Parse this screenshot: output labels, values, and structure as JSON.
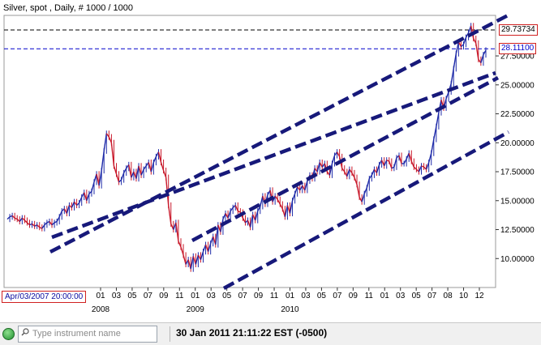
{
  "window": {
    "title": "Silver, spot , Daily, # 1000 / 1000"
  },
  "price_markers": {
    "upper": {
      "value": "29.73734",
      "color": "#000000"
    },
    "lower": {
      "value": "28.11100",
      "color": "#0000cc"
    }
  },
  "cursor_date": "Apr/03/2007 20:00:00",
  "statusbar": {
    "search_placeholder": "Type instrument name",
    "clock": "30 Jan 2011 21:11:22  EST (-0500)"
  },
  "chart_data": {
    "type": "line",
    "title": "Silver, spot , Daily, # 1000 / 1000",
    "y_ticks": [
      "27.50000",
      "25.00000",
      "22.50000",
      "20.00000",
      "17.50000",
      "15.00000",
      "12.50000",
      "10.00000"
    ],
    "ylim": [
      7.5,
      31.0
    ],
    "x_month_ticks": [
      "01",
      "03",
      "05",
      "07",
      "09",
      "11",
      "01",
      "03",
      "05",
      "07",
      "09",
      "11",
      "01",
      "03",
      "05",
      "07",
      "09",
      "11",
      "01",
      "03",
      "05",
      "07",
      "08",
      "10",
      "12"
    ],
    "x_year_labels": [
      "2008",
      "2009",
      "2010"
    ],
    "series": [
      {
        "values": [
          13.4,
          13.6,
          13.7,
          13.5,
          13.4,
          13.2,
          13.5,
          13.3,
          13.1,
          12.9,
          13.0,
          12.8,
          12.9,
          12.7,
          12.6,
          12.9,
          13.1,
          13.2,
          12.9,
          13.1,
          13.2,
          13.6,
          14.1,
          14.3,
          13.9,
          14.6,
          14.4,
          14.9,
          14.6,
          14.8,
          15.3,
          15.7,
          15.0,
          15.6,
          15.8,
          16.6,
          17.3,
          16.3,
          17.6,
          19.3,
          20.8,
          20.5,
          20.0,
          18.0,
          17.3,
          16.6,
          16.8,
          17.4,
          17.8,
          18.1,
          17.0,
          17.5,
          16.9,
          18.0,
          17.2,
          17.7,
          18.0,
          18.3,
          17.5,
          18.3,
          18.8,
          19.2,
          18.3,
          17.6,
          17.0,
          14.6,
          13.0,
          12.5,
          13.1,
          11.5,
          11.0,
          10.3,
          9.5,
          9.9,
          9.1,
          10.2,
          9.5,
          10.3,
          9.9,
          10.6,
          11.2,
          10.6,
          11.3,
          11.9,
          11.2,
          12.9,
          12.3,
          13.4,
          13.9,
          13.5,
          14.1,
          14.4,
          14.6,
          14.1,
          14.0,
          13.5,
          13.1,
          13.3,
          12.7,
          13.8,
          13.3,
          14.1,
          14.5,
          15.4,
          14.7,
          15.5,
          15.9,
          14.9,
          15.4,
          15.1,
          14.7,
          14.3,
          13.6,
          14.6,
          13.9,
          15.0,
          15.6,
          16.2,
          15.9,
          16.3,
          15.9,
          16.7,
          17.2,
          16.9,
          17.8,
          17.5,
          18.3,
          17.9,
          18.2,
          17.5,
          17.2,
          18.2,
          18.9,
          19.2,
          18.8,
          17.8,
          17.5,
          17.1,
          17.7,
          17.4,
          17.0,
          16.4,
          15.3,
          14.9,
          15.6,
          16.1,
          16.9,
          17.2,
          17.7,
          17.4,
          18.1,
          18.5,
          18.0,
          18.5,
          18.4,
          17.8,
          17.9,
          18.7,
          18.9,
          18.2,
          18.2,
          18.6,
          19.1,
          18.4,
          17.9,
          17.7,
          17.5,
          18.0,
          17.9,
          17.7,
          18.3,
          19.1,
          20.3,
          21.4,
          22.6,
          23.7,
          23.0,
          23.8,
          24.4,
          25.1,
          26.4,
          27.7,
          28.7,
          28.3,
          28.5,
          29.1,
          29.5,
          30.1,
          29.0,
          28.6,
          27.2,
          26.9,
          27.6,
          28.0
        ]
      }
    ],
    "grid": true,
    "legend": "none"
  }
}
